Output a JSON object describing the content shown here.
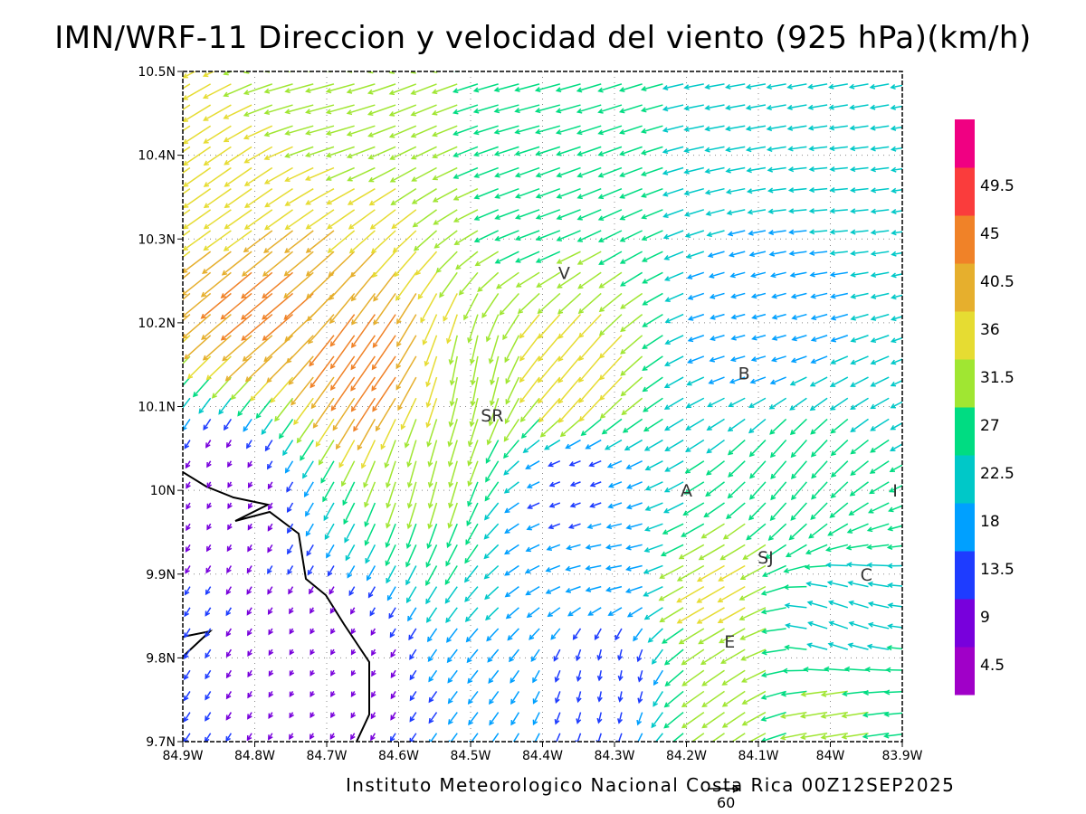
{
  "title": "IMN/WRF-11 Direccion y velocidad del viento (925 hPa)(km/h)",
  "credit": "Instituto Meteorologico Nacional Costa Rica 00Z12SEP2025",
  "reference_vector": {
    "label": "60",
    "speed_kmh": 60
  },
  "axes": {
    "lat_ticks": [
      "9.7N",
      "9.8N",
      "9.9N",
      "10N",
      "10.1N",
      "10.2N",
      "10.3N",
      "10.4N",
      "10.5N"
    ],
    "lon_ticks": [
      "84.9W",
      "84.8W",
      "84.7W",
      "84.6W",
      "84.5W",
      "84.4W",
      "84.3W",
      "84.2W",
      "84.1W",
      "84W",
      "83.9W"
    ]
  },
  "places": [
    {
      "code": "V",
      "lon": -84.37,
      "lat": 10.26
    },
    {
      "code": "SR",
      "lon": -84.47,
      "lat": 10.09
    },
    {
      "code": "B",
      "lon": -84.12,
      "lat": 10.14
    },
    {
      "code": "A",
      "lon": -84.2,
      "lat": 10.0
    },
    {
      "code": "I",
      "lon": -83.91,
      "lat": 10.0
    },
    {
      "code": "SJ",
      "lon": -84.09,
      "lat": 9.92
    },
    {
      "code": "C",
      "lon": -83.95,
      "lat": 9.9
    },
    {
      "code": "E",
      "lon": -84.14,
      "lat": 9.82
    }
  ],
  "colorbar": {
    "levels": [
      "4.5",
      "9",
      "13.5",
      "18",
      "22.5",
      "27",
      "31.5",
      "36",
      "40.5",
      "45",
      "49.5"
    ],
    "colors": [
      "#a000c8",
      "#7800dc",
      "#1e3cff",
      "#00a0ff",
      "#00c8c8",
      "#00dc82",
      "#a0e632",
      "#e6dc32",
      "#e6af2d",
      "#f08228",
      "#fa3c3c",
      "#f00082"
    ]
  },
  "chart_data": {
    "type": "vector-field",
    "title": "IMN/WRF-11 Direccion y velocidad del viento (925 hPa)(km/h)",
    "lon_range": [
      -84.9,
      -83.9
    ],
    "lat_range": [
      9.7,
      10.5
    ],
    "legend": "right",
    "grid": true,
    "wind_regions": [
      {
        "lon": -84.7,
        "lat": 10.47,
        "dir_from_deg": 75,
        "speed_kmh": 30
      },
      {
        "lon": -84.4,
        "lat": 10.47,
        "dir_from_deg": 75,
        "speed_kmh": 26
      },
      {
        "lon": -84.1,
        "lat": 10.47,
        "dir_from_deg": 80,
        "speed_kmh": 20
      },
      {
        "lon": -84.82,
        "lat": 10.35,
        "dir_from_deg": 55,
        "speed_kmh": 34
      },
      {
        "lon": -84.4,
        "lat": 10.34,
        "dir_from_deg": 70,
        "speed_kmh": 26
      },
      {
        "lon": -84.0,
        "lat": 10.34,
        "dir_from_deg": 85,
        "speed_kmh": 18
      },
      {
        "lon": -84.78,
        "lat": 10.24,
        "dir_from_deg": 50,
        "speed_kmh": 42
      },
      {
        "lon": -84.62,
        "lat": 10.16,
        "dir_from_deg": 35,
        "speed_kmh": 44
      },
      {
        "lon": -84.5,
        "lat": 10.15,
        "dir_from_deg": 10,
        "speed_kmh": 30
      },
      {
        "lon": -84.35,
        "lat": 10.15,
        "dir_from_deg": 40,
        "speed_kmh": 36
      },
      {
        "lon": -84.1,
        "lat": 10.2,
        "dir_from_deg": 75,
        "speed_kmh": 14
      },
      {
        "lon": -84.83,
        "lat": 10.0,
        "dir_from_deg": 30,
        "speed_kmh": 6
      },
      {
        "lon": -84.55,
        "lat": 10.03,
        "dir_from_deg": 15,
        "speed_kmh": 28
      },
      {
        "lon": -84.35,
        "lat": 10.0,
        "dir_from_deg": 70,
        "speed_kmh": 10
      },
      {
        "lon": -84.05,
        "lat": 10.02,
        "dir_from_deg": 40,
        "speed_kmh": 24
      },
      {
        "lon": -84.3,
        "lat": 9.92,
        "dir_from_deg": 80,
        "speed_kmh": 16
      },
      {
        "lon": -84.15,
        "lat": 9.88,
        "dir_from_deg": 60,
        "speed_kmh": 33
      },
      {
        "lon": -83.98,
        "lat": 9.83,
        "dir_from_deg": 110,
        "speed_kmh": 20
      },
      {
        "lon": -84.7,
        "lat": 9.8,
        "dir_from_deg": 30,
        "speed_kmh": 5
      },
      {
        "lon": -84.3,
        "lat": 9.78,
        "dir_from_deg": 10,
        "speed_kmh": 10
      },
      {
        "lon": -84.15,
        "lat": 9.75,
        "dir_from_deg": 55,
        "speed_kmh": 28
      },
      {
        "lon": -83.98,
        "lat": 9.74,
        "dir_from_deg": 80,
        "speed_kmh": 28
      }
    ]
  }
}
